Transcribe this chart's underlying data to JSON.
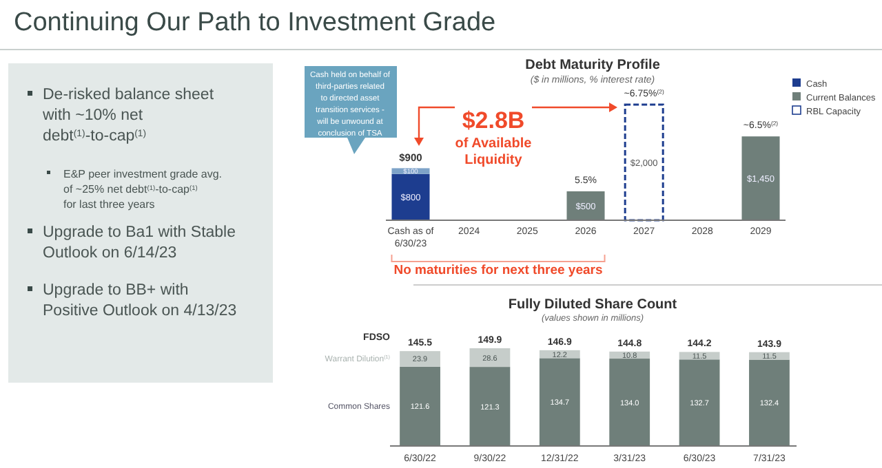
{
  "chart_data": [
    {
      "type": "other",
      "title": "Continuing Our Path to Investment Grade",
      "annotations": [
        "De-risked balance sheet with ~10% net debt$^{(1)}$-to-cap$^{(1)}$",
        "E&P peer investment grade avg. of ~25% net debt$^{(1)}$-to-cap$^{(1)}$ for last three years",
        "Upgrade to Ba1 with Stable Outlook on 6/14/23",
        "Upgrade to BB+ with Positive Outlook on 4/13/23"
      ]
    },
    {
      "type": "bar",
      "title": "Debt Maturity Profile",
      "subtitle": "($ in millions, % interest rate)",
      "stacked": true,
      "legend": "top right",
      "categories": [
        "Cash as of 6/30/23",
        "2024",
        "2025",
        "2026",
        "2027",
        "2028",
        "2029"
      ],
      "series": [
        {
          "name": "Cash",
          "color": "#1d3d8f",
          "values": [
            800,
            null,
            null,
            null,
            null,
            null,
            null
          ],
          "value_labels": [
            "$800",
            null,
            null,
            null,
            null,
            null,
            null
          ]
        },
        {
          "color": "#7ea3c8",
          "values": [
            100,
            null,
            null,
            null,
            null,
            null,
            null
          ],
          "value_labels": [
            "$100",
            null,
            null,
            null,
            null,
            null,
            null
          ]
        },
        {
          "name": "Current Balances",
          "color": "#6f7f7a",
          "values": [
            null,
            null,
            null,
            500,
            null,
            null,
            1450
          ],
          "value_labels": [
            null,
            null,
            null,
            "$500",
            null,
            null,
            "$1,450"
          ]
        },
        {
          "name": "RBL Capacity",
          "color": "#ffffff",
          "line_style": "dashed",
          "values": [
            null,
            null,
            null,
            null,
            2000,
            null,
            null
          ],
          "value_labels": [
            null,
            null,
            null,
            null,
            "$2,000",
            null,
            null
          ]
        }
      ],
      "totals": [
        "$900",
        null,
        null,
        null,
        null,
        null,
        null
      ],
      "annotations": [
        "Cash held on behalf of third-parties related to directed asset transition services - will be unwound at conclusion of TSA",
        "$2.8B",
        "of Available Liquidity",
        "No maturities for next three years",
        {
          "text": "5.5%",
          "x": "2026",
          "y": 500
        },
        {
          "text": "~6.75%$^{(2)}$",
          "x": "2027",
          "y": 2000
        },
        {
          "text": "~6.5%$^{(2)}$",
          "x": "2029",
          "y": 1450
        }
      ]
    },
    {
      "type": "bar",
      "title": "Fully Diluted Share Count",
      "subtitle": "(values shown in millions)",
      "stacked": true,
      "legend": "left",
      "categories": [
        "6/30/22",
        "9/30/22",
        "12/31/22",
        "3/31/23",
        "6/30/23",
        "7/31/23"
      ],
      "series": [
        {
          "name": "Common Shares",
          "color": "#6f7f7a",
          "values": [
            121.6,
            121.3,
            134.7,
            134.0,
            132.7,
            132.4
          ],
          "value_labels": [
            "121.6",
            "121.3",
            "134.7",
            "134.0",
            "132.7",
            "132.4"
          ]
        },
        {
          "name": "Warrant Dilution$^{(1)}$",
          "color": "#c6cdca",
          "values": [
            23.9,
            28.6,
            12.2,
            10.8,
            11.5,
            11.5
          ],
          "value_labels": [
            "23.9",
            "28.6",
            "12.2",
            "10.8",
            "11.5",
            "11.5"
          ]
        }
      ],
      "totals": [
        "145.5",
        "149.9",
        "146.9",
        "144.8",
        "144.2",
        "143.9"
      ],
      "annotations": [
        "FDSO"
      ]
    }
  ]
}
